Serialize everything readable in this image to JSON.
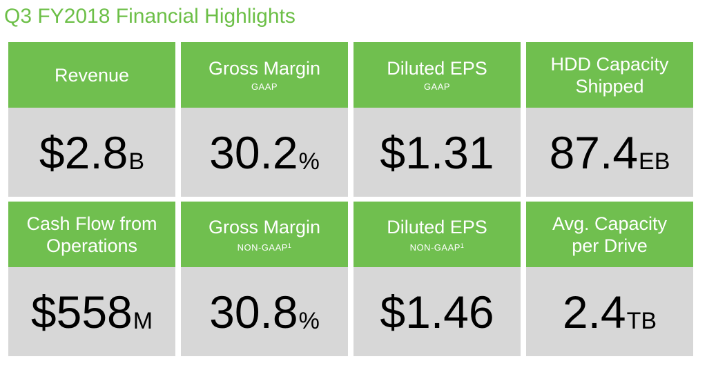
{
  "title": "Q3 FY2018 Financial Highlights",
  "colors": {
    "title": "#6cbf47",
    "header_bg": "#70bf4f",
    "value_bg": "#d7d7d7"
  },
  "cards": [
    {
      "label": "Revenue",
      "sublabel": "",
      "sup": "",
      "value": "$2.8",
      "unit": "B"
    },
    {
      "label": "Gross Margin",
      "sublabel": "GAAP",
      "sup": "",
      "value": "30.2",
      "unit": "%"
    },
    {
      "label": "Diluted EPS",
      "sublabel": "GAAP",
      "sup": "",
      "value": "$1.31",
      "unit": ""
    },
    {
      "label": "HDD Capacity\nShipped",
      "sublabel": "",
      "sup": "",
      "value": "87.4",
      "unit": "EB"
    },
    {
      "label": "Cash Flow from\nOperations",
      "sublabel": "",
      "sup": "",
      "value": "$558",
      "unit": "M"
    },
    {
      "label": "Gross Margin",
      "sublabel": "NON-GAAP",
      "sup": "1",
      "value": "30.8",
      "unit": "%"
    },
    {
      "label": "Diluted EPS",
      "sublabel": "NON-GAAP",
      "sup": "1",
      "value": "$1.46",
      "unit": ""
    },
    {
      "label": "Avg. Capacity\nper Drive",
      "sublabel": "",
      "sup": "",
      "value": "2.4",
      "unit": "TB"
    }
  ]
}
